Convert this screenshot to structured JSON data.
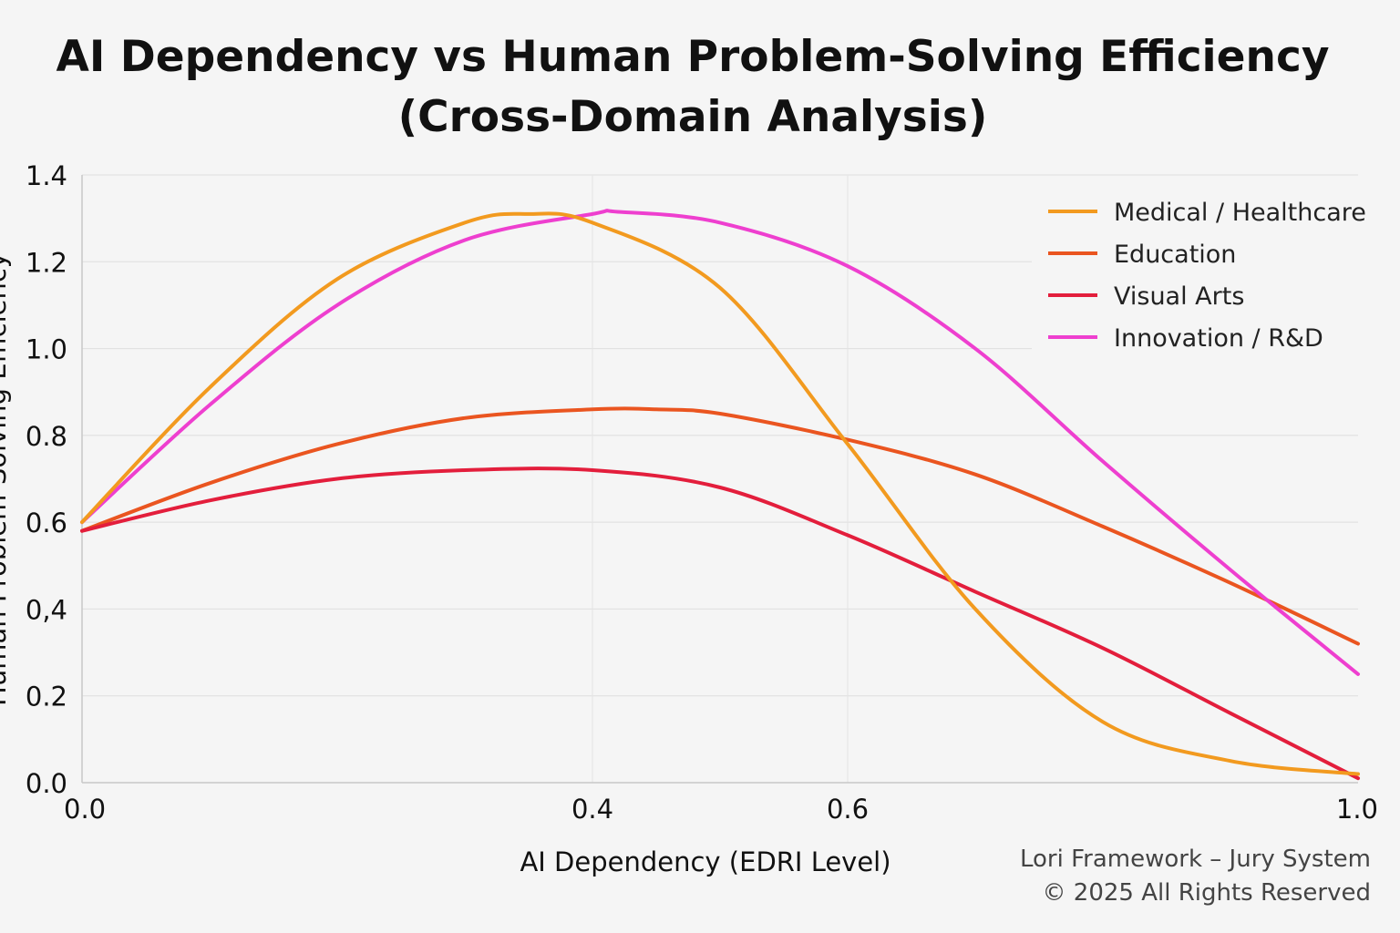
{
  "chart_data": {
    "type": "line",
    "title_lines": [
      "AI Dependency vs Human Problem-Solving Efficiency",
      "(Cross-Domain Analysis)"
    ],
    "xlabel": "AI Dependency (EDRI Level)",
    "ylabel": "Human Problem-Solving Efficiency",
    "x_ticks": [
      {
        "value": 0.0,
        "label": "0.0"
      },
      {
        "value": 0.4,
        "label": "0.4"
      },
      {
        "value": 0.6,
        "label": "0.6"
      },
      {
        "value": 1.0,
        "label": "1.0"
      }
    ],
    "y_ticks": [
      {
        "value": 0.0,
        "label": "0.0"
      },
      {
        "value": 0.2,
        "label": "0.2"
      },
      {
        "value": 0.4,
        "label": "0,4"
      },
      {
        "value": 0.6,
        "label": "0.6"
      },
      {
        "value": 0.8,
        "label": "0.8"
      },
      {
        "value": 1.0,
        "label": "1.0"
      },
      {
        "value": 1.2,
        "label": "1.2"
      },
      {
        "value": 1.4,
        "label": "1.4"
      }
    ],
    "xlim": [
      0.0,
      1.0
    ],
    "ylim": [
      0.0,
      1.4
    ],
    "grid": true,
    "legend_position": "top-right",
    "series": [
      {
        "name": "Medical / Healthcare",
        "color": "#f29a1f",
        "points": [
          [
            0.0,
            0.6
          ],
          [
            0.1,
            0.91
          ],
          [
            0.2,
            1.16
          ],
          [
            0.3,
            1.29
          ],
          [
            0.35,
            1.31
          ],
          [
            0.4,
            1.29
          ],
          [
            0.5,
            1.14
          ],
          [
            0.6,
            0.78
          ],
          [
            0.7,
            0.4
          ],
          [
            0.8,
            0.14
          ],
          [
            0.9,
            0.05
          ],
          [
            1.0,
            0.02
          ]
        ]
      },
      {
        "name": "Education",
        "color": "#ea5520",
        "points": [
          [
            0.0,
            0.58
          ],
          [
            0.1,
            0.69
          ],
          [
            0.2,
            0.78
          ],
          [
            0.3,
            0.84
          ],
          [
            0.4,
            0.86
          ],
          [
            0.45,
            0.86
          ],
          [
            0.5,
            0.85
          ],
          [
            0.6,
            0.79
          ],
          [
            0.7,
            0.71
          ],
          [
            0.8,
            0.59
          ],
          [
            0.9,
            0.46
          ],
          [
            1.0,
            0.32
          ]
        ]
      },
      {
        "name": "Visual Arts",
        "color": "#e31e3c",
        "points": [
          [
            0.0,
            0.58
          ],
          [
            0.1,
            0.65
          ],
          [
            0.2,
            0.7
          ],
          [
            0.3,
            0.72
          ],
          [
            0.4,
            0.72
          ],
          [
            0.5,
            0.68
          ],
          [
            0.6,
            0.57
          ],
          [
            0.7,
            0.44
          ],
          [
            0.8,
            0.31
          ],
          [
            0.9,
            0.16
          ],
          [
            1.0,
            0.01
          ]
        ]
      },
      {
        "name": "Innovation / R&D",
        "color": "#ee3fcf",
        "points": [
          [
            0.0,
            0.6
          ],
          [
            0.1,
            0.87
          ],
          [
            0.2,
            1.1
          ],
          [
            0.3,
            1.25
          ],
          [
            0.4,
            1.31
          ],
          [
            0.42,
            1.315
          ],
          [
            0.5,
            1.29
          ],
          [
            0.6,
            1.19
          ],
          [
            0.7,
            1.0
          ],
          [
            0.8,
            0.74
          ],
          [
            0.9,
            0.49
          ],
          [
            1.0,
            0.25
          ]
        ]
      }
    ]
  },
  "footer": {
    "line1": "Lori Framework – Jury System",
    "line2": "© 2025 All Rights Reserved"
  }
}
